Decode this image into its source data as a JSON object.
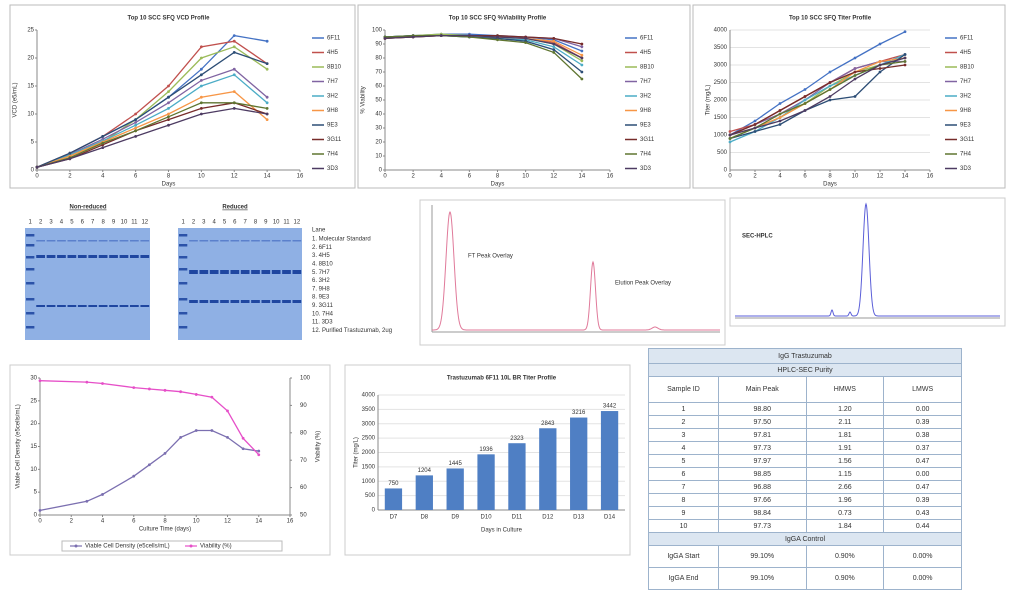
{
  "chart_data": [
    {
      "type": "line",
      "title": "Top 10 SCC SFQ VCD Profile",
      "x_label": "Days",
      "y_label": "VCD (e5/mL)",
      "x": [
        0,
        2,
        4,
        6,
        8,
        10,
        12,
        14
      ],
      "xlim": [
        0,
        16
      ],
      "xticks": [
        0,
        2,
        4,
        6,
        8,
        10,
        12,
        14,
        16
      ],
      "ylim": [
        0,
        25
      ],
      "yticks": [
        0,
        5,
        10,
        15,
        20,
        25
      ],
      "grid": false,
      "legend": "right",
      "markers": true,
      "series": [
        {
          "name": "6F11",
          "color": "#4472c4",
          "values": [
            0.5,
            3,
            6,
            9,
            13,
            18,
            24,
            23
          ]
        },
        {
          "name": "4H5",
          "color": "#c0504d",
          "values": [
            0.5,
            3,
            6,
            10,
            15,
            22,
            23,
            19
          ]
        },
        {
          "name": "8B10",
          "color": "#9bbb59",
          "values": [
            0.5,
            2.5,
            5,
            9,
            14,
            20,
            22,
            18
          ]
        },
        {
          "name": "7H7",
          "color": "#8064a2",
          "values": [
            0.5,
            2.8,
            5.5,
            8.5,
            12,
            16,
            18,
            13
          ]
        },
        {
          "name": "3H2",
          "color": "#4bacc6",
          "values": [
            0.5,
            2.7,
            5.2,
            8,
            11,
            15,
            17,
            12
          ]
        },
        {
          "name": "9H8",
          "color": "#f79646",
          "values": [
            0.5,
            2.5,
            5,
            7.5,
            10,
            13,
            14,
            9
          ]
        },
        {
          "name": "9E3",
          "color": "#2c4d75",
          "values": [
            0.5,
            3,
            6,
            9,
            13,
            17,
            21,
            19
          ]
        },
        {
          "name": "3G11",
          "color": "#772c2a",
          "values": [
            0.5,
            2,
            4.5,
            7,
            9,
            11,
            12,
            10
          ]
        },
        {
          "name": "7H4",
          "color": "#5f7530",
          "values": [
            0.5,
            2.2,
            4.8,
            7,
            9.5,
            12,
            12,
            11
          ]
        },
        {
          "name": "3D3",
          "color": "#4d3b62",
          "values": [
            0.5,
            2,
            4,
            6,
            8,
            10,
            11,
            10
          ]
        }
      ]
    },
    {
      "type": "line",
      "title": "Top 10 SCC SFQ %Viability  Profile",
      "x_label": "Days",
      "y_label": "% Viability",
      "x": [
        0,
        2,
        4,
        6,
        8,
        10,
        12,
        14
      ],
      "xlim": [
        0,
        16
      ],
      "xticks": [
        0,
        2,
        4,
        6,
        8,
        10,
        12,
        14,
        16
      ],
      "ylim": [
        0,
        100
      ],
      "yticks": [
        0,
        10,
        20,
        30,
        40,
        50,
        60,
        70,
        80,
        90,
        100
      ],
      "grid": false,
      "legend": "right",
      "markers": true,
      "series": [
        {
          "name": "6F11",
          "color": "#4472c4",
          "values": [
            95,
            96,
            97,
            97,
            96,
            95,
            93,
            85
          ]
        },
        {
          "name": "4H5",
          "color": "#c0504d",
          "values": [
            94,
            96,
            96,
            96,
            95,
            94,
            91,
            80
          ]
        },
        {
          "name": "8B10",
          "color": "#9bbb59",
          "values": [
            95,
            96,
            97,
            96,
            96,
            94,
            90,
            78
          ]
        },
        {
          "name": "7H7",
          "color": "#8064a2",
          "values": [
            94,
            95,
            96,
            96,
            95,
            95,
            94,
            88
          ]
        },
        {
          "name": "3H2",
          "color": "#4bacc6",
          "values": [
            95,
            96,
            96,
            95,
            94,
            93,
            88,
            75
          ]
        },
        {
          "name": "9H8",
          "color": "#f79646",
          "values": [
            94,
            95,
            96,
            96,
            95,
            94,
            92,
            82
          ]
        },
        {
          "name": "9E3",
          "color": "#2c4d75",
          "values": [
            95,
            96,
            96,
            95,
            94,
            92,
            86,
            70
          ]
        },
        {
          "name": "3G11",
          "color": "#772c2a",
          "values": [
            94,
            95,
            96,
            96,
            96,
            95,
            94,
            90
          ]
        },
        {
          "name": "7H4",
          "color": "#5f7530",
          "values": [
            95,
            96,
            96,
            95,
            93,
            91,
            84,
            65
          ]
        },
        {
          "name": "3D3",
          "color": "#4d3b62",
          "values": [
            94,
            95,
            96,
            96,
            95,
            94,
            90,
            80
          ]
        }
      ]
    },
    {
      "type": "line",
      "title": "Top 10 SCC SFQ Titer Profile",
      "x_label": "Days",
      "y_label": "Titer (mg/L)",
      "x": [
        0,
        2,
        4,
        6,
        8,
        10,
        12,
        14
      ],
      "xlim": [
        0,
        16
      ],
      "xticks": [
        0,
        2,
        4,
        6,
        8,
        10,
        12,
        14,
        16
      ],
      "ylim": [
        0,
        4000
      ],
      "yticks": [
        0,
        500,
        1000,
        1500,
        2000,
        2500,
        3000,
        3500,
        4000
      ],
      "grid": true,
      "legend": "right",
      "markers": true,
      "series": [
        {
          "name": "6F11",
          "color": "#4472c4",
          "values": [
            1000,
            1400,
            1900,
            2300,
            2800,
            3200,
            3600,
            3950
          ]
        },
        {
          "name": "4H5",
          "color": "#c0504d",
          "values": [
            1100,
            1300,
            1700,
            2100,
            2500,
            2900,
            3100,
            3300
          ]
        },
        {
          "name": "8B10",
          "color": "#9bbb59",
          "values": [
            900,
            1200,
            1500,
            1900,
            2400,
            2800,
            3000,
            3200
          ]
        },
        {
          "name": "7H7",
          "color": "#8064a2",
          "values": [
            1000,
            1300,
            1600,
            2000,
            2500,
            2900,
            3100,
            3100
          ]
        },
        {
          "name": "3H2",
          "color": "#4bacc6",
          "values": [
            800,
            1100,
            1500,
            2000,
            2400,
            2700,
            3000,
            3300
          ]
        },
        {
          "name": "9H8",
          "color": "#f79646",
          "values": [
            1000,
            1200,
            1500,
            1900,
            2300,
            2800,
            3100,
            3200
          ]
        },
        {
          "name": "9E3",
          "color": "#2c4d75",
          "values": [
            900,
            1100,
            1300,
            1700,
            2000,
            2100,
            2800,
            3300
          ]
        },
        {
          "name": "3G11",
          "color": "#772c2a",
          "values": [
            1000,
            1300,
            1700,
            2100,
            2500,
            2800,
            2900,
            3000
          ]
        },
        {
          "name": "7H4",
          "color": "#5f7530",
          "values": [
            900,
            1200,
            1600,
            1900,
            2300,
            2700,
            3000,
            3100
          ]
        },
        {
          "name": "3D3",
          "color": "#4d3b62",
          "values": [
            1000,
            1200,
            1400,
            1700,
            2100,
            2600,
            3000,
            3200
          ]
        }
      ]
    },
    {
      "type": "line",
      "x_label": "Culture Time (days)",
      "y_label": "Viable Cell Density (e5cells/mL)",
      "y2_label": "Viability (%)",
      "x": [
        0,
        3,
        4,
        6,
        7,
        8,
        9,
        10,
        11,
        12,
        13,
        14
      ],
      "xlim": [
        0,
        16
      ],
      "xticks": [
        0,
        2,
        4,
        6,
        8,
        10,
        12,
        14,
        16
      ],
      "ylim": [
        0,
        30
      ],
      "yticks": [
        0,
        5,
        10,
        15,
        20,
        25,
        30
      ],
      "y2lim": [
        50,
        100
      ],
      "y2ticks": [
        50,
        60,
        70,
        80,
        90,
        100
      ],
      "grid": false,
      "legend": "bottom",
      "markers": true,
      "series": [
        {
          "name": "Viable Cell Density (e5cells/mL)",
          "color": "#7b6fb0",
          "values": [
            1,
            3,
            4.5,
            8.5,
            11,
            13.5,
            17,
            18.5,
            18.5,
            17,
            14.5,
            14
          ]
        },
        {
          "name": "Viability (%)",
          "color": "#e64fc8",
          "axis": "y2",
          "values": [
            99,
            98.5,
            98,
            96.5,
            96,
            95.5,
            95,
            94,
            93,
            88,
            78,
            72
          ]
        }
      ]
    },
    {
      "type": "bar",
      "title": "Trastuzumab 6F11 10L BR Titer Profile",
      "x_label": "Days in Culture",
      "y_label": "Titer (mg/L)",
      "categories": [
        "D7",
        "D8",
        "D9",
        "D10",
        "D11",
        "D12",
        "D13",
        "D14"
      ],
      "values": [
        750,
        1204,
        1445,
        1936,
        2323,
        2843,
        3216,
        3442
      ],
      "color": "#4f7fc4",
      "ylim": [
        0,
        4000
      ],
      "yticks": [
        0,
        500,
        1000,
        1500,
        2000,
        2500,
        3000,
        3500,
        4000
      ],
      "grid": true
    }
  ],
  "gel": {
    "nonreduced_title": "Non-reduced",
    "reduced_title": "Reduced",
    "lanes": [
      "1",
      "2",
      "3",
      "4",
      "5",
      "6",
      "7",
      "8",
      "9",
      "10",
      "11",
      "12"
    ],
    "legend_title": "Lane",
    "legend": [
      "1. Molecular Standard",
      "2. 6F11",
      "3. 4H5",
      "4. 8B10",
      "5. 7H7",
      "6. 3H2",
      "7. 9H8",
      "8. 9E3",
      "9. 3G11",
      "10. 7H4",
      "11. 3D3",
      "12. Purified Trastuzumab, 2ug"
    ]
  },
  "chromatogram": {
    "ft_label": "FT Peak Overlay",
    "elution_label": "Elution Peak Overlay",
    "sec_title": "SEC-HPLC"
  },
  "table": {
    "title": "IgG Trastuzumab",
    "subtitle": "HPLC-SEC Purity",
    "columns": [
      "Sample ID",
      "Main Peak",
      "HMWS",
      "LMWS"
    ],
    "rows": [
      [
        "1",
        "98.80",
        "1.20",
        "0.00"
      ],
      [
        "2",
        "97.50",
        "2.11",
        "0.39"
      ],
      [
        "3",
        "97.81",
        "1.81",
        "0.38"
      ],
      [
        "4",
        "97.73",
        "1.91",
        "0.37"
      ],
      [
        "5",
        "97.97",
        "1.56",
        "0.47"
      ],
      [
        "6",
        "98.85",
        "1.15",
        "0.00"
      ],
      [
        "7",
        "96.88",
        "2.66",
        "0.47"
      ],
      [
        "8",
        "97.66",
        "1.96",
        "0.39"
      ],
      [
        "9",
        "98.84",
        "0.73",
        "0.43"
      ],
      [
        "10",
        "97.73",
        "1.84",
        "0.44"
      ]
    ],
    "control_title": "IgGA Control",
    "control_rows": [
      [
        "IgGA Start",
        "99.10%",
        "0.90%",
        "0.00%"
      ],
      [
        "IgGA End",
        "99.10%",
        "0.90%",
        "0.00%"
      ]
    ]
  }
}
